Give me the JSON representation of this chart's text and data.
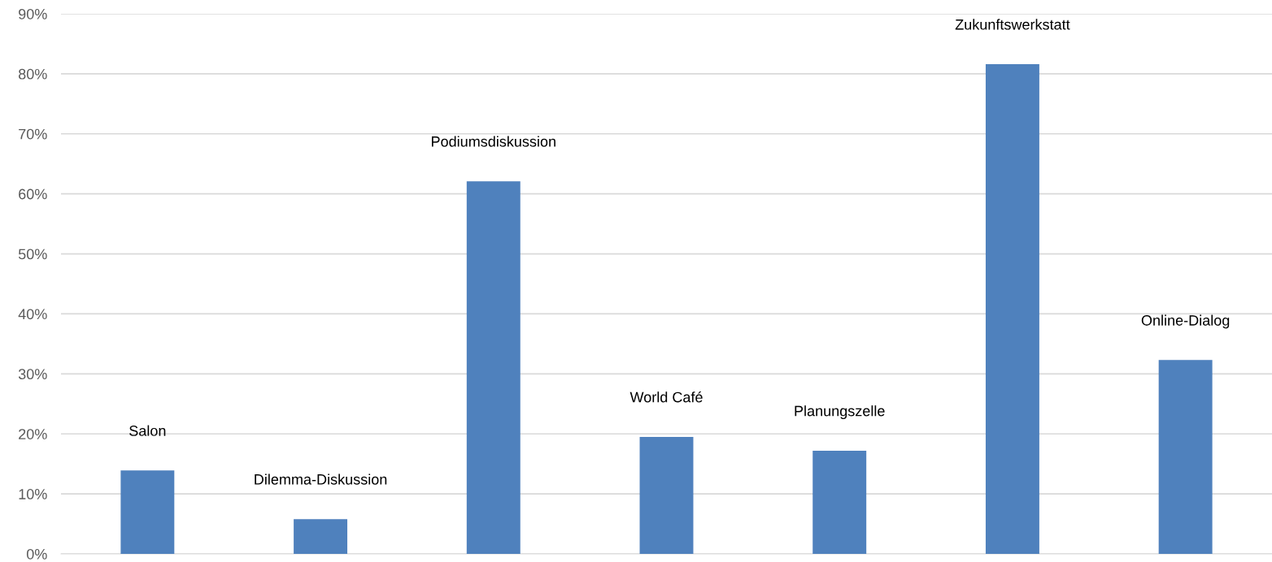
{
  "chart_data": {
    "type": "bar",
    "categories": [
      "Salon",
      "Dilemma-Diskussion",
      "Podiumsdiskussion",
      "World Café",
      "Planungszelle",
      "Zukunftswerkstatt",
      "Online-Dialog"
    ],
    "values": [
      13.9,
      5.8,
      62.1,
      19.5,
      17.2,
      81.6,
      32.3
    ],
    "color": "#4f81bd",
    "ylim": [
      0,
      90
    ],
    "yticks": [
      {
        "value": 0,
        "label": "0%"
      },
      {
        "value": 10,
        "label": "10%"
      },
      {
        "value": 20,
        "label": "20%"
      },
      {
        "value": 30,
        "label": "30%"
      },
      {
        "value": 40,
        "label": "40%"
      },
      {
        "value": 50,
        "label": "50%"
      },
      {
        "value": 60,
        "label": "60%"
      },
      {
        "value": 70,
        "label": "70%"
      },
      {
        "value": 80,
        "label": "80%"
      },
      {
        "value": 90,
        "label": "90%"
      }
    ],
    "grid": "y"
  }
}
